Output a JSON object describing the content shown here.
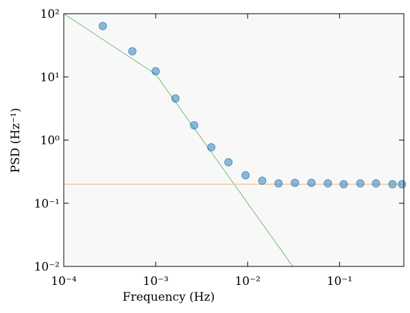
{
  "chart_data": {
    "type": "scatter",
    "xlabel": "Frequency (Hz)",
    "ylabel": "PSD (Hz⁻¹)",
    "xscale": "log",
    "yscale": "log",
    "xlim": [
      0.0001,
      0.5
    ],
    "ylim": [
      0.01,
      100
    ],
    "xticks": [
      {
        "value": 0.0001,
        "label": "10⁻⁴"
      },
      {
        "value": 0.001,
        "label": "10⁻³"
      },
      {
        "value": 0.01,
        "label": "10⁻²"
      },
      {
        "value": 0.1,
        "label": "10⁻¹"
      }
    ],
    "yticks": [
      {
        "value": 0.01,
        "label": "10⁻²"
      },
      {
        "value": 0.1,
        "label": "10⁻¹"
      },
      {
        "value": 1,
        "label": "10⁰"
      },
      {
        "value": 10,
        "label": "10¹"
      },
      {
        "value": 100,
        "label": "10²"
      }
    ],
    "background": "#f8f8f8",
    "series": [
      {
        "type": "scatter",
        "color": "#1f77b4",
        "x": [
          0.000266,
          0.000557,
          0.001,
          0.00164,
          0.00262,
          0.00402,
          0.00618,
          0.0095,
          0.0144,
          0.0217,
          0.0327,
          0.0494,
          0.0746,
          0.111,
          0.168,
          0.249,
          0.376,
          0.477
        ],
        "values": [
          63.8,
          25.4,
          12.3,
          4.54,
          1.71,
          0.77,
          0.446,
          0.277,
          0.227,
          0.206,
          0.21,
          0.21,
          0.206,
          0.2,
          0.206,
          0.206,
          0.2,
          0.2
        ]
      },
      {
        "type": "line",
        "color": "#4daf4a",
        "x": [
          0.0001,
          0.001,
          0.031
        ],
        "values": [
          100,
          11,
          0.01
        ]
      },
      {
        "type": "line",
        "color": "#e0a030",
        "x": [
          0.0001,
          0.5
        ],
        "values": [
          0.2,
          0.2
        ]
      }
    ]
  }
}
